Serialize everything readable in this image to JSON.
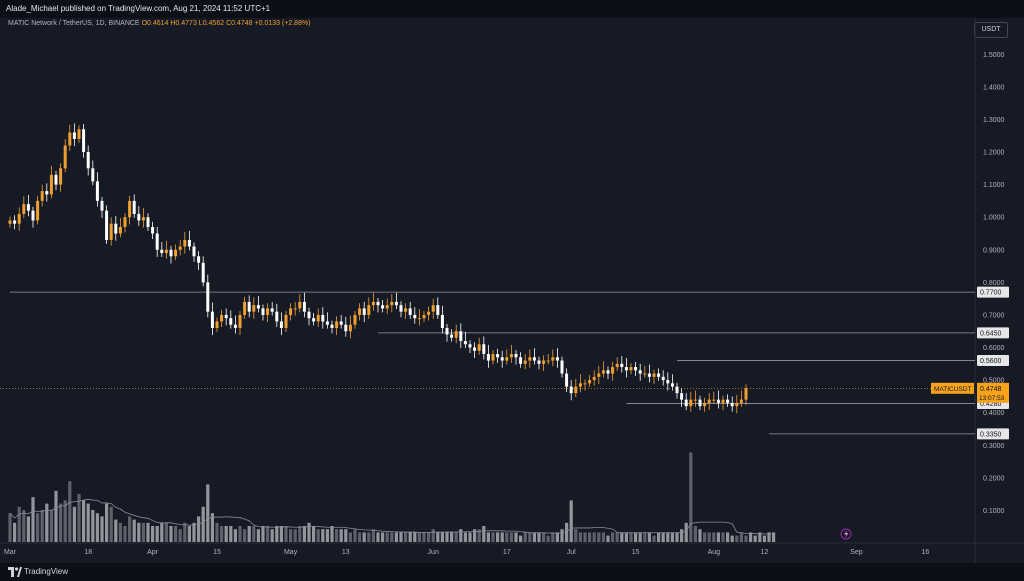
{
  "header": {
    "publish_text": "Alade_Michael published on TradingView.com, Aug 21, 2024 11:52 UTC+1"
  },
  "legend": {
    "symbol_text": "MATIC Network / TetherUS, 1D, BINANCE",
    "open": "O0.4614",
    "high": "H0.4773",
    "low": "L0.4562",
    "close": "C0.4748",
    "change": "+0.0133 (+2.88%)"
  },
  "price_axis": {
    "unit": "USDT"
  },
  "footer": {
    "brand": "TradingView"
  },
  "colors": {
    "background": "#161a25",
    "bull": "#f0a030",
    "bear": "#ffffff",
    "line": "#8a8e99",
    "label_bg": "#e7e7e7",
    "current_label_bg": "#f7a21b"
  },
  "chart_data": {
    "type": "candlestick",
    "title": "MATIC Network / TetherUS, 1D, BINANCE",
    "y_ticks": [
      "1.5000",
      "1.4000",
      "1.3000",
      "1.2000",
      "1.1000",
      "1.0000",
      "0.9000",
      "0.8000",
      "0.7000",
      "0.6000",
      "0.5000",
      "0.4000",
      "0.3000",
      "0.2000",
      "0.1000"
    ],
    "y_tick_values": [
      1.5,
      1.4,
      1.3,
      1.2,
      1.1,
      1.0,
      0.9,
      0.8,
      0.7,
      0.6,
      0.5,
      0.4,
      0.3,
      0.2,
      0.1
    ],
    "x_ticks": [
      {
        "label": "Mar",
        "day": 0
      },
      {
        "label": "18",
        "day": 17
      },
      {
        "label": "Apr",
        "day": 31
      },
      {
        "label": "15",
        "day": 45
      },
      {
        "label": "May",
        "day": 61
      },
      {
        "label": "13",
        "day": 73
      },
      {
        "label": "Jun",
        "day": 92
      },
      {
        "label": "17",
        "day": 108
      },
      {
        "label": "Jul",
        "day": 122
      },
      {
        "label": "15",
        "day": 136
      },
      {
        "label": "Aug",
        "day": 153
      },
      {
        "label": "12",
        "day": 164
      },
      {
        "label": "Sep",
        "day": 184
      },
      {
        "label": "16",
        "day": 199
      }
    ],
    "horizontal_levels": [
      {
        "label": "0.7700",
        "value": 0.77
      },
      {
        "label": "0.6450",
        "value": 0.645
      },
      {
        "label": "0.5600",
        "value": 0.56
      },
      {
        "label": "0.4280",
        "value": 0.428
      },
      {
        "label": "0.3350",
        "value": 0.335
      }
    ],
    "current_price": {
      "symbol": "MATICUSDT",
      "value": "0.4748",
      "countdown": "13:07:53"
    },
    "closes": [
      0.99,
      0.98,
      1.01,
      1.04,
      1.02,
      0.99,
      1.05,
      1.08,
      1.07,
      1.13,
      1.1,
      1.15,
      1.22,
      1.26,
      1.24,
      1.27,
      1.2,
      1.15,
      1.11,
      1.05,
      1.02,
      0.93,
      0.98,
      0.95,
      0.97,
      1.0,
      1.05,
      1.01,
      0.99,
      1.0,
      0.97,
      0.95,
      0.9,
      0.89,
      0.9,
      0.88,
      0.9,
      0.91,
      0.93,
      0.91,
      0.88,
      0.86,
      0.8,
      0.71,
      0.66,
      0.68,
      0.7,
      0.69,
      0.67,
      0.66,
      0.7,
      0.74,
      0.71,
      0.73,
      0.72,
      0.7,
      0.72,
      0.71,
      0.68,
      0.66,
      0.7,
      0.72,
      0.72,
      0.74,
      0.71,
      0.69,
      0.68,
      0.7,
      0.68,
      0.67,
      0.66,
      0.68,
      0.67,
      0.65,
      0.67,
      0.7,
      0.72,
      0.7,
      0.73,
      0.74,
      0.73,
      0.72,
      0.73,
      0.74,
      0.73,
      0.71,
      0.72,
      0.7,
      0.69,
      0.69,
      0.7,
      0.71,
      0.73,
      0.7,
      0.66,
      0.64,
      0.63,
      0.65,
      0.62,
      0.61,
      0.6,
      0.59,
      0.61,
      0.58,
      0.56,
      0.58,
      0.57,
      0.56,
      0.57,
      0.58,
      0.57,
      0.55,
      0.56,
      0.57,
      0.56,
      0.55,
      0.56,
      0.56,
      0.57,
      0.56,
      0.52,
      0.48,
      0.46,
      0.48,
      0.49,
      0.49,
      0.5,
      0.51,
      0.52,
      0.53,
      0.52,
      0.54,
      0.55,
      0.54,
      0.53,
      0.54,
      0.53,
      0.52,
      0.52,
      0.51,
      0.52,
      0.51,
      0.5,
      0.49,
      0.48,
      0.46,
      0.44,
      0.42,
      0.44,
      0.44,
      0.42,
      0.43,
      0.44,
      0.44,
      0.43,
      0.44,
      0.43,
      0.42,
      0.43,
      0.44,
      0.4748
    ],
    "volumes": [
      0.09,
      0.06,
      0.11,
      0.1,
      0.08,
      0.14,
      0.09,
      0.1,
      0.12,
      0.1,
      0.16,
      0.12,
      0.13,
      0.19,
      0.11,
      0.15,
      0.13,
      0.12,
      0.1,
      0.09,
      0.08,
      0.12,
      0.11,
      0.07,
      0.06,
      0.05,
      0.08,
      0.07,
      0.06,
      0.06,
      0.06,
      0.05,
      0.05,
      0.06,
      0.06,
      0.05,
      0.05,
      0.04,
      0.06,
      0.05,
      0.06,
      0.08,
      0.11,
      0.18,
      0.09,
      0.06,
      0.05,
      0.05,
      0.05,
      0.04,
      0.05,
      0.04,
      0.05,
      0.05,
      0.04,
      0.05,
      0.05,
      0.04,
      0.05,
      0.05,
      0.05,
      0.04,
      0.04,
      0.05,
      0.05,
      0.06,
      0.05,
      0.04,
      0.04,
      0.04,
      0.05,
      0.04,
      0.04,
      0.04,
      0.03,
      0.04,
      0.03,
      0.03,
      0.03,
      0.04,
      0.03,
      0.03,
      0.03,
      0.03,
      0.03,
      0.03,
      0.03,
      0.03,
      0.03,
      0.03,
      0.03,
      0.03,
      0.04,
      0.03,
      0.03,
      0.03,
      0.03,
      0.03,
      0.04,
      0.03,
      0.03,
      0.04,
      0.04,
      0.05,
      0.03,
      0.03,
      0.03,
      0.03,
      0.03,
      0.03,
      0.03,
      0.02,
      0.03,
      0.03,
      0.03,
      0.03,
      0.03,
      0.02,
      0.03,
      0.03,
      0.04,
      0.06,
      0.13,
      0.04,
      0.03,
      0.03,
      0.03,
      0.03,
      0.03,
      0.03,
      0.02,
      0.03,
      0.03,
      0.03,
      0.03,
      0.03,
      0.03,
      0.03,
      0.03,
      0.03,
      0.02,
      0.03,
      0.03,
      0.03,
      0.03,
      0.03,
      0.04,
      0.06,
      0.28,
      0.05,
      0.04,
      0.03,
      0.03,
      0.03,
      0.03,
      0.03,
      0.03,
      0.02,
      0.02,
      0.03,
      0.02,
      0.03,
      0.02,
      0.03,
      0.02,
      0.03,
      0.03
    ]
  }
}
